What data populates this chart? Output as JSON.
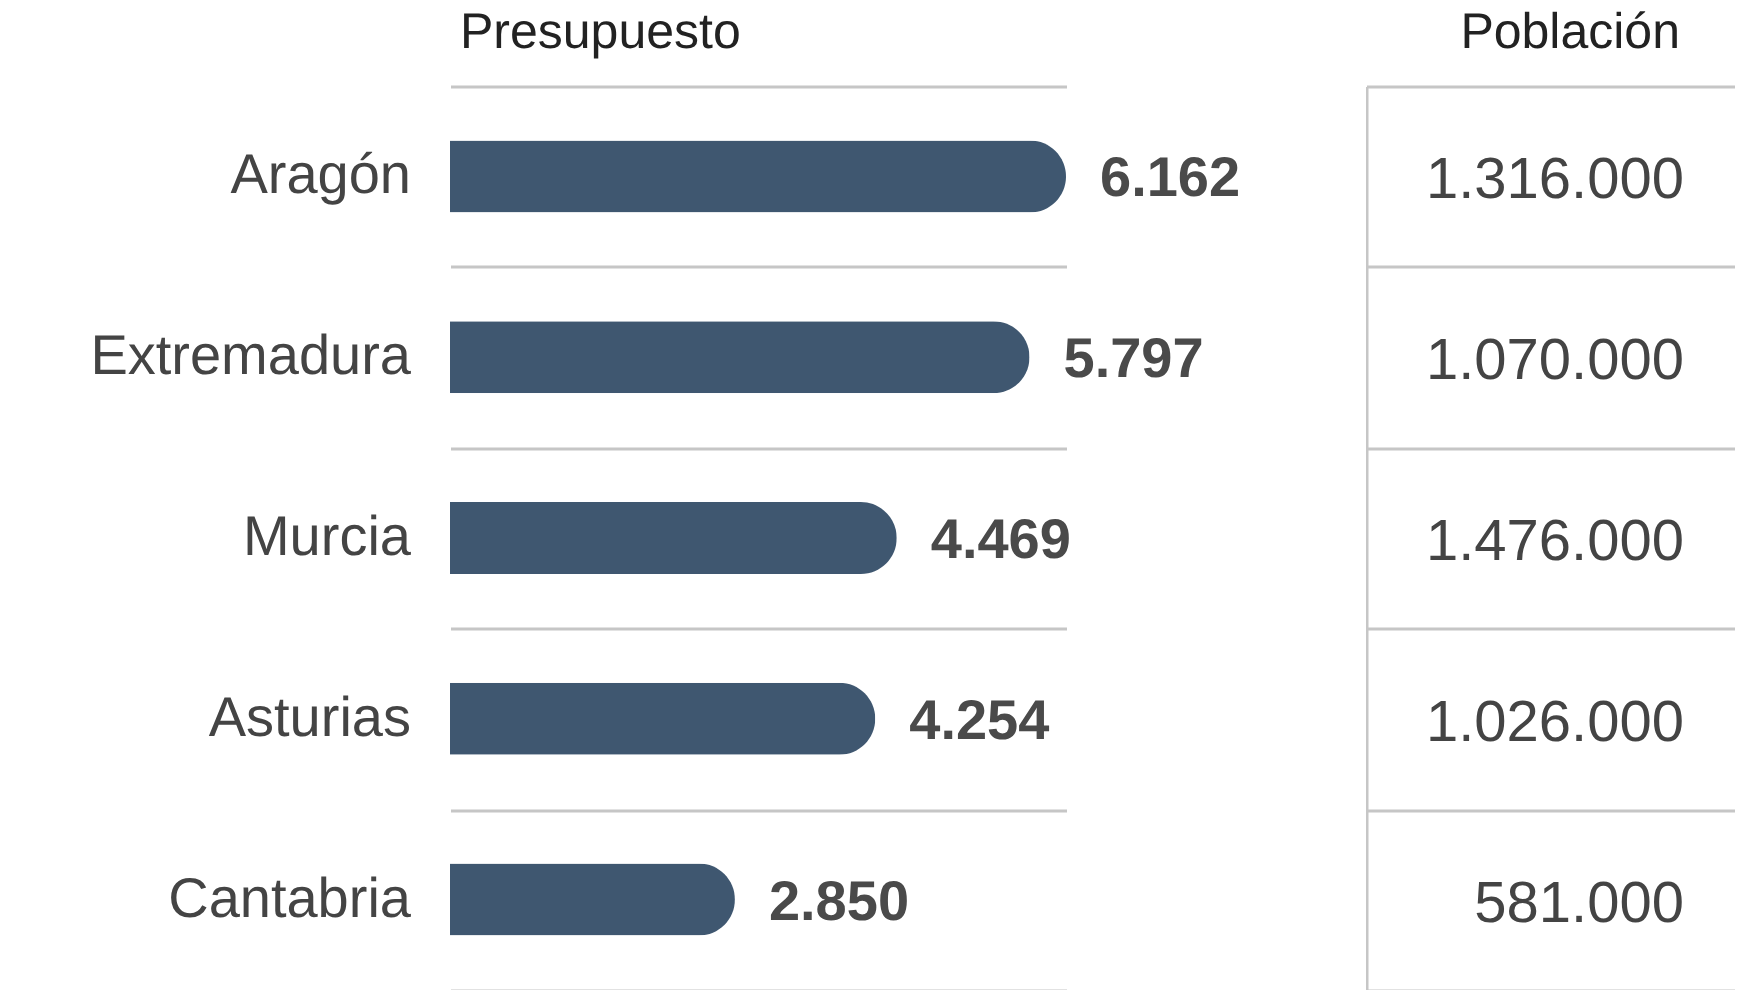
{
  "chart_data": [
    {
      "type": "bar",
      "orientation": "horizontal",
      "title": "Presupuesto",
      "categories": [
        "Aragón",
        "Extremadura",
        "Murcia",
        "Asturias",
        "Cantabria"
      ],
      "values": [
        6162,
        5797,
        4469,
        4254,
        2850
      ],
      "value_labels": [
        "6.162",
        "5.797",
        "4.469",
        "4.254",
        "2.850"
      ],
      "color": "#3f5770",
      "grid": "y"
    },
    {
      "type": "other",
      "title": "Población",
      "categories": [
        null,
        null,
        null,
        null,
        null
      ],
      "values": [
        1316000,
        1070000,
        1476000,
        1026000,
        581000
      ],
      "value_labels": [
        "1.316.000",
        "1.070.000",
        "1.476.000",
        "1.026.000",
        "581.000"
      ]
    }
  ]
}
